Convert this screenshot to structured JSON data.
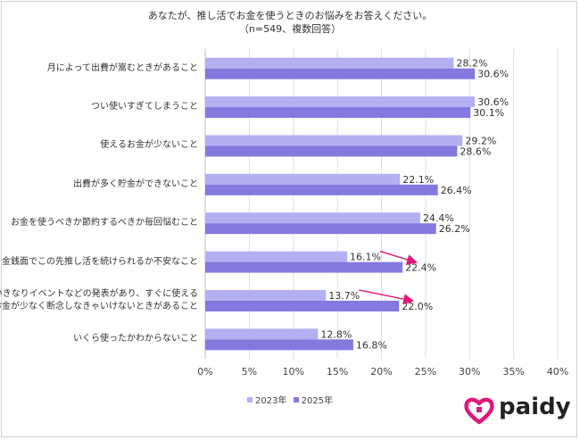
{
  "chart_data": {
    "type": "bar",
    "title": "あなたが、推し活でお金を使うときのお悩みをお答えください。",
    "subtitle": "（n=549、複数回答）",
    "categories": [
      [
        "月によって出費が嵩むときがあること"
      ],
      [
        "つい使いすぎてしまうこと"
      ],
      [
        "使えるお金が少ないこと"
      ],
      [
        "出費が多く貯金ができないこと"
      ],
      [
        "お金を使うべきか節約するべきか毎回悩むこと"
      ],
      [
        "金銭面でこの先推し活を続けられるか不安なこと"
      ],
      [
        "いきなりイベントなどの発表があり、すぐに使える",
        "お金が少なく断念しなきゃいけないときがあること"
      ],
      [
        "いくら使ったかわからないこと"
      ]
    ],
    "series": [
      {
        "name": "2023年",
        "color": "#b3b0f2",
        "values": [
          28.2,
          30.6,
          29.2,
          22.1,
          24.4,
          16.1,
          13.7,
          12.8
        ]
      },
      {
        "name": "2025年",
        "color": "#8379df",
        "values": [
          30.6,
          30.1,
          28.6,
          26.4,
          26.2,
          22.4,
          22.0,
          16.8
        ]
      }
    ],
    "value_labels": {
      "2023年": [
        "28.2%",
        "30.6%",
        "29.2%",
        "22.1%",
        "24.4%",
        "16.1%",
        "13.7%",
        "12.8%"
      ],
      "2025年": [
        "30.6%",
        "30.1%",
        "28.6%",
        "26.4%",
        "26.2%",
        "22.4%",
        "22.0%",
        "16.8%"
      ]
    },
    "xlim": [
      0,
      40
    ],
    "x_ticks": [
      "0%",
      "5%",
      "10%",
      "15%",
      "20%",
      "25%",
      "30%",
      "35%",
      "40%"
    ],
    "grid": true,
    "legend_position": "bottom",
    "arrow_rows": [
      5,
      6
    ],
    "arrow_color": "#e0177b",
    "orientation": "horizontal"
  },
  "brand": {
    "name": "paidy",
    "logo_color": "#e0177b"
  }
}
